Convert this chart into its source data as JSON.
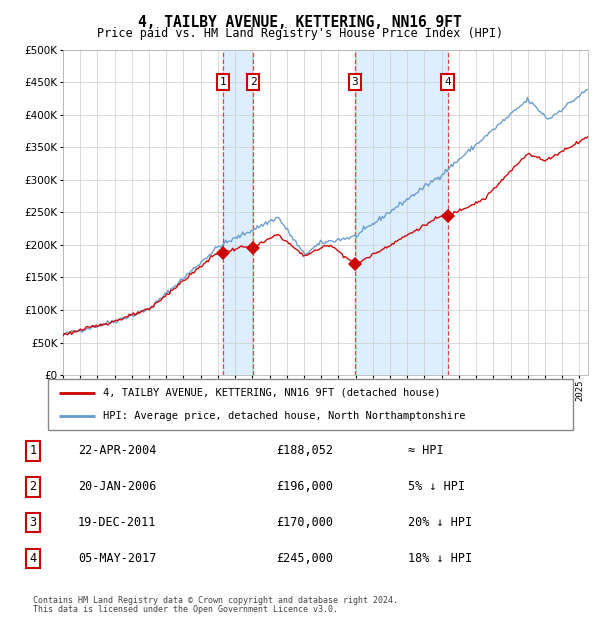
{
  "title": "4, TAILBY AVENUE, KETTERING, NN16 9FT",
  "subtitle": "Price paid vs. HM Land Registry's House Price Index (HPI)",
  "footer1": "Contains HM Land Registry data © Crown copyright and database right 2024.",
  "footer2": "This data is licensed under the Open Government Licence v3.0.",
  "legend_red": "4, TAILBY AVENUE, KETTERING, NN16 9FT (detached house)",
  "legend_blue": "HPI: Average price, detached house, North Northamptonshire",
  "transactions": [
    {
      "num": 1,
      "date": "22-APR-2004",
      "price": "£188,052",
      "rel": "≈ HPI",
      "x_year": 2004.3
    },
    {
      "num": 2,
      "date": "20-JAN-2006",
      "price": "£196,000",
      "rel": "5% ↓ HPI",
      "x_year": 2006.05
    },
    {
      "num": 3,
      "date": "19-DEC-2011",
      "price": "£170,000",
      "rel": "20% ↓ HPI",
      "x_year": 2011.96
    },
    {
      "num": 4,
      "date": "05-MAY-2017",
      "price": "£245,000",
      "rel": "18% ↓ HPI",
      "x_year": 2017.34
    }
  ],
  "hpi_color": "#6699cc",
  "price_color": "#cc0000",
  "background_color": "#ffffff",
  "plot_bg_color": "#ffffff",
  "shade_color": "#ddeeff",
  "grid_color": "#cccccc",
  "dashed_color": "#dd3333",
  "ylim": [
    0,
    500000
  ],
  "yticks": [
    0,
    50000,
    100000,
    150000,
    200000,
    250000,
    300000,
    350000,
    400000,
    450000,
    500000
  ],
  "xlim_start": 1995,
  "xlim_end": 2025.5
}
